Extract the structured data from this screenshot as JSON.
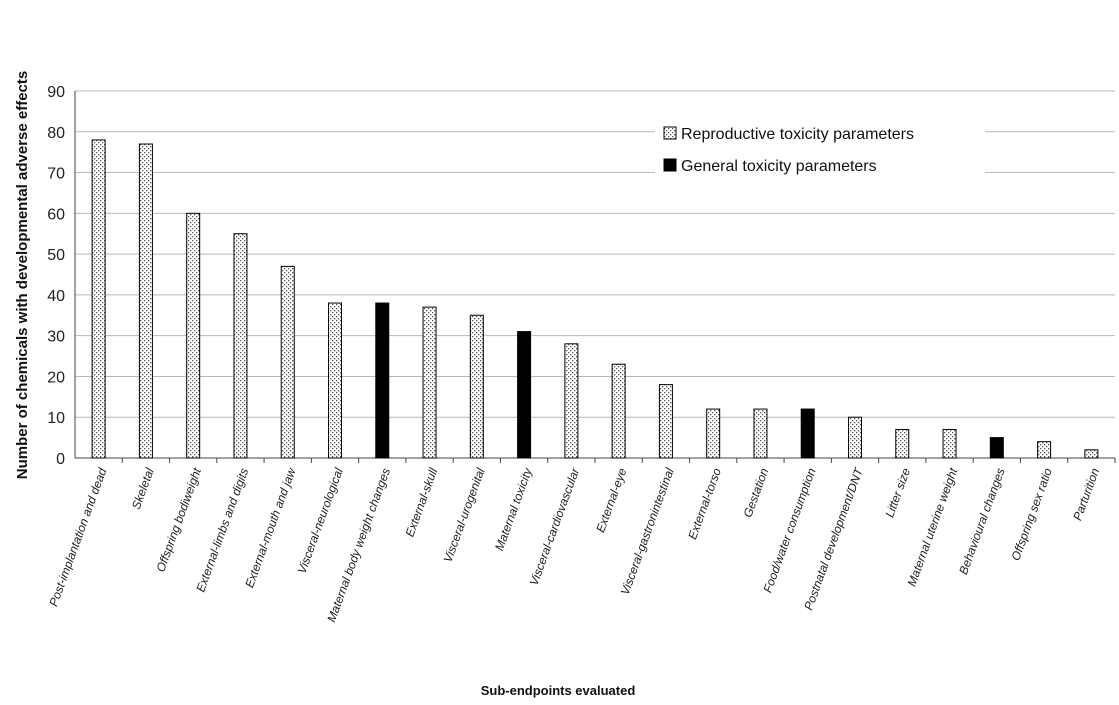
{
  "chart_data": {
    "type": "bar",
    "title": "",
    "xlabel": "Sub-endpoints evaluated",
    "ylabel": "Number of chemicals with developmental adverse effects",
    "ylim": [
      0,
      90
    ],
    "yticks": [
      0,
      10,
      20,
      30,
      40,
      50,
      60,
      70,
      80,
      90
    ],
    "grid": true,
    "legend_position": "top-right",
    "categories": [
      "Post-implantation and dead",
      "Skeletal",
      "Offspring bodiweight",
      "External-limbs and digits",
      "External-mouth and jaw",
      "Visceral-neurological",
      "Maternal body weight changes",
      "External-skull",
      "Visceral-urogenital",
      "Maternal toxicity",
      "Visceral-cardiovascular",
      "External-eye",
      "Visceral-gastronintestinal",
      "External-torso",
      "Gestation",
      "Food/water consumption",
      "Postnatal development/DNT",
      "Litter size",
      "Maternal uterine weight",
      "Behavioural changes",
      "Offspring sex ratio",
      "Parturition"
    ],
    "series": [
      {
        "name": "Reproductive toxicity parameters",
        "color": "#e8e8e8",
        "pattern": "dotted",
        "values": [
          78,
          77,
          60,
          55,
          47,
          38,
          null,
          37,
          35,
          null,
          28,
          23,
          18,
          12,
          12,
          null,
          10,
          7,
          7,
          null,
          4,
          2
        ]
      },
      {
        "name": "General toxicity parameters",
        "color": "#000000",
        "pattern": "solid",
        "values": [
          null,
          null,
          null,
          null,
          null,
          null,
          38,
          null,
          null,
          31,
          null,
          null,
          null,
          null,
          null,
          12,
          null,
          null,
          null,
          5,
          null,
          null
        ]
      }
    ]
  }
}
